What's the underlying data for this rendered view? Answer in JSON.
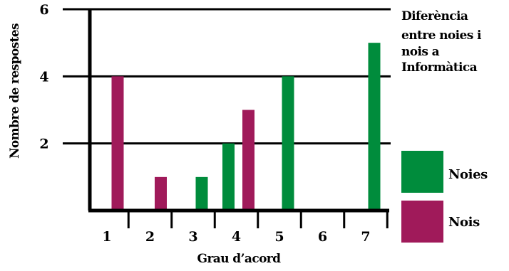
{
  "chart_data": {
    "type": "bar",
    "title_lines": [
      "Diferència",
      "entre noies i",
      "nois a",
      "Informàtica"
    ],
    "xlabel": "Grau d’acord",
    "ylabel": "Nombre de respostes",
    "categories": [
      "1",
      "2",
      "3",
      "4",
      "5",
      "6",
      "7"
    ],
    "y_ticks": [
      "2",
      "4",
      "6"
    ],
    "ylim": [
      0,
      6
    ],
    "grid": true,
    "legend_position": "right",
    "series": [
      {
        "name": "Noies",
        "color": "#008c3c",
        "values": [
          0,
          0,
          1,
          2,
          4,
          0,
          5
        ]
      },
      {
        "name": "Nois",
        "color": "#a01a5a",
        "values": [
          4,
          1,
          0,
          3,
          0,
          0,
          0
        ]
      }
    ]
  }
}
